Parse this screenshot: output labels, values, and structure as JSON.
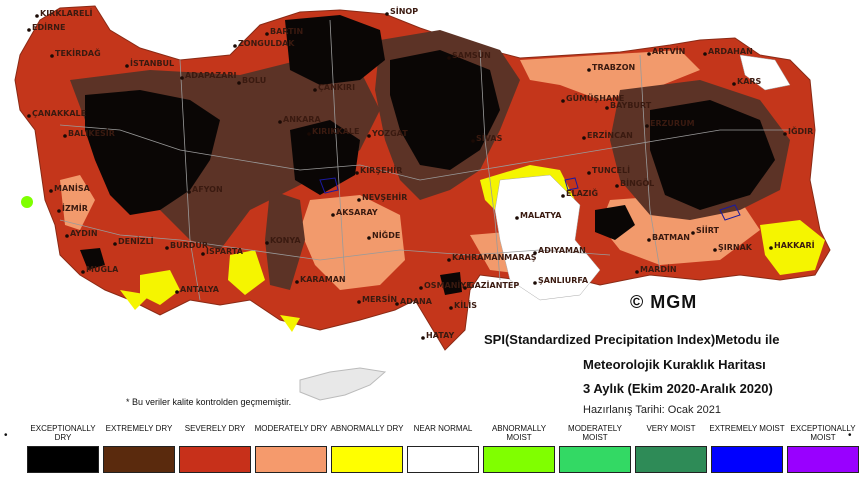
{
  "map": {
    "cities": [
      "KIRKLARELİ",
      "EDİRNE",
      "TEKİRDAĞ",
      "İSTANBUL",
      "ADAPAZARI",
      "BARTIN",
      "ZONGULDAK",
      "SİNOP",
      "SAMSUN",
      "TRABZON",
      "ARTVİN",
      "ARDAHAN",
      "KARS",
      "IĞDIR",
      "GÜMÜŞHANE",
      "BAYBURT",
      "ERZURUM",
      "ERZİNCAN",
      "ÇANAKKALE",
      "BALIKESİR",
      "BOLU",
      "ÇANKIRI",
      "ANKARA",
      "KIRIKKALE",
      "YOZGAT",
      "SİVAS",
      "MANİSA",
      "İZMİR",
      "AYDIN",
      "DENİZLİ",
      "AFYON",
      "KONYA",
      "AKSARAY",
      "NEVŞEHİR",
      "KIRŞEHİR",
      "NİĞDE",
      "ISPARTA",
      "BURDUR",
      "ANTALYA",
      "MUĞLA",
      "KARAMAN",
      "MERSİN",
      "ADANA",
      "OSMANİYE",
      "KAHRAMANMARAŞ",
      "GAZİANTEP",
      "KİLİS",
      "HATAY",
      "ADIYAMAN",
      "ŞANLIURFA",
      "MALATYA",
      "ELAZIĞ",
      "TUNCELİ",
      "BİNGÖL",
      "BATMAN",
      "MARDİN",
      "SİİRT",
      "ŞIRNAK",
      "HAKKARİ"
    ],
    "colors": {
      "exceptionally_dry": "#0a0605",
      "extremely_dry": "#5c3326",
      "severely_dry": "#c4361b",
      "moderately_dry": "#f29a6c",
      "abnormally_dry": "#f5f500",
      "near_normal": "#ffffff",
      "abnormally_moist": "#7fff00"
    }
  },
  "copyright": "© MGM",
  "title": {
    "line1": "SPI(Standardized Precipitation Index)Metodu ile",
    "line2": "Meteorolojik Kuraklık Haritası",
    "line3": "3 Aylık (Ekim 2020-Aralık 2020)"
  },
  "prepared": "Hazırlanış Tarihi: Ocak 2021",
  "footnote": "* Bu veriler kalite kontrolden geçmemiştir.",
  "legend": [
    {
      "label": "EXCEPTIONALLY DRY",
      "color": "#000000"
    },
    {
      "label": "EXTREMELY DRY",
      "color": "#5a2a0d"
    },
    {
      "label": "SEVERELY DRY",
      "color": "#c7301a"
    },
    {
      "label": "MODERATELY DRY",
      "color": "#f59a6c"
    },
    {
      "label": "ABNORMALLY DRY",
      "color": "#ffff00"
    },
    {
      "label": "NEAR NORMAL",
      "color": "#ffffff"
    },
    {
      "label": "ABNORMALLY MOIST",
      "color": "#80ff00"
    },
    {
      "label": "MODERATELY MOIST",
      "color": "#33d964"
    },
    {
      "label": "VERY MOIST",
      "color": "#2e8b57"
    },
    {
      "label": "EXTREMELY MOIST",
      "color": "#0000ff"
    },
    {
      "label": "EXCEPTIONALLY MOIST",
      "color": "#9900ff"
    }
  ]
}
